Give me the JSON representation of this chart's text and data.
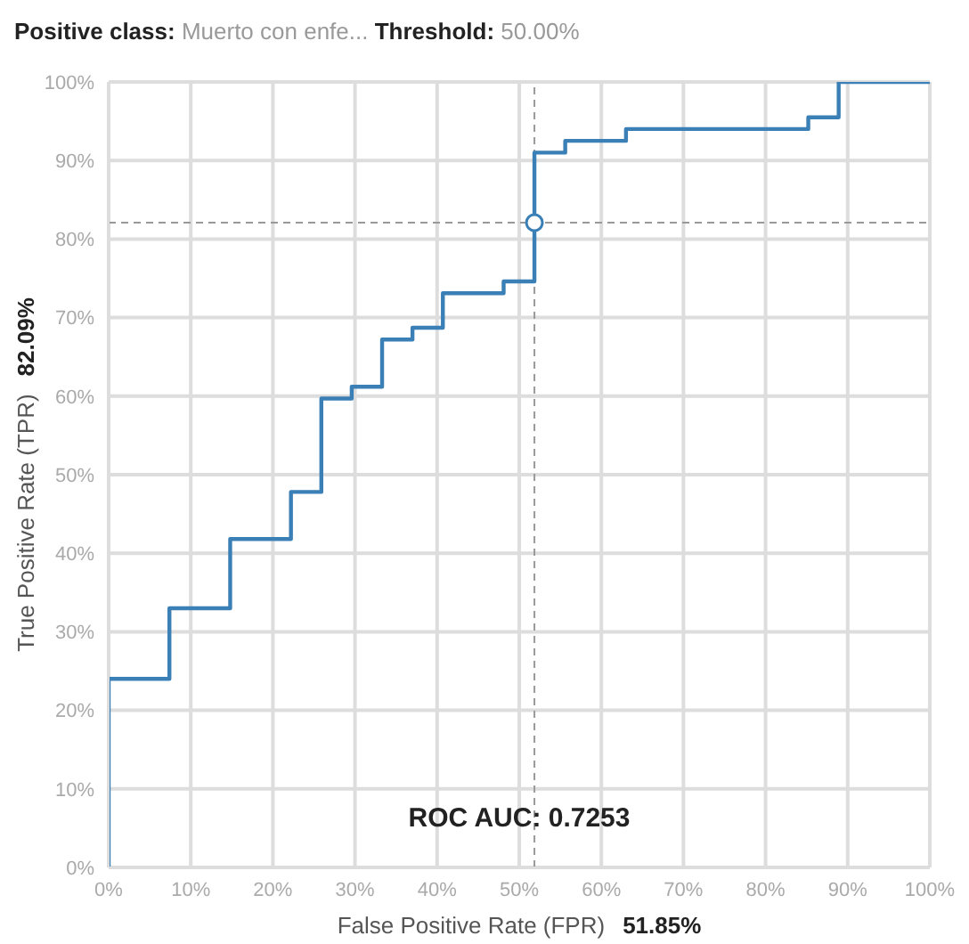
{
  "chart_data": {
    "type": "step",
    "title": "Positive class:",
    "subtitle": "Muerto con enfe...",
    "xlabel": "False Positive Rate (FPR)",
    "ylabel": "True Positive Rate (TPR)",
    "annotations": [
      "Threshold:",
      "50.00%",
      "ROC AUC: 0.7253",
      "51.85%",
      "82.09%"
    ],
    "series": [
      {
        "color": "#3a7fb5",
        "x": [
          0,
          0,
          7.4,
          14.8,
          22.2,
          25.9,
          29.6,
          33.3,
          37,
          40.7,
          48.1,
          51.85,
          55.6,
          63,
          85.2,
          88.9,
          100
        ],
        "values": [
          0,
          24,
          33,
          41.8,
          47.8,
          59.7,
          61.2,
          67.2,
          68.7,
          73.1,
          74.6,
          91,
          92.5,
          94,
          95.5,
          100,
          100
        ]
      },
      {
        "type": "scatter",
        "color": "#3a7fb5",
        "x": [
          51.85
        ],
        "values": [
          82.09
        ],
        "marker": "circle"
      }
    ],
    "ref_lines": [
      {
        "axis": "x",
        "value": 51.85,
        "color": "#999999",
        "line_style": "dashed"
      },
      {
        "axis": "y",
        "value": 82.09,
        "color": "#999999",
        "line_style": "dashed"
      }
    ],
    "xlim": [
      0,
      100
    ],
    "ylim": [
      0,
      100
    ],
    "xticks": [
      {
        "value": 0,
        "label": "0%"
      },
      {
        "value": 10,
        "label": "10%"
      },
      {
        "value": 20,
        "label": "20%"
      },
      {
        "value": 30,
        "label": "30%"
      },
      {
        "value": 40,
        "label": "40%"
      },
      {
        "value": 50,
        "label": "50%"
      },
      {
        "value": 60,
        "label": "60%"
      },
      {
        "value": 70,
        "label": "70%"
      },
      {
        "value": 80,
        "label": "80%"
      },
      {
        "value": 90,
        "label": "90%"
      },
      {
        "value": 100,
        "label": "100%"
      }
    ],
    "yticks": [
      {
        "value": 0,
        "label": "0%"
      },
      {
        "value": 10,
        "label": "10%"
      },
      {
        "value": 20,
        "label": "20%"
      },
      {
        "value": 30,
        "label": "30%"
      },
      {
        "value": 40,
        "label": "40%"
      },
      {
        "value": 50,
        "label": "50%"
      },
      {
        "value": 60,
        "label": "60%"
      },
      {
        "value": 70,
        "label": "70%"
      },
      {
        "value": 80,
        "label": "80%"
      },
      {
        "value": 90,
        "label": "90%"
      },
      {
        "value": 100,
        "label": "100%"
      }
    ],
    "grid": true
  }
}
